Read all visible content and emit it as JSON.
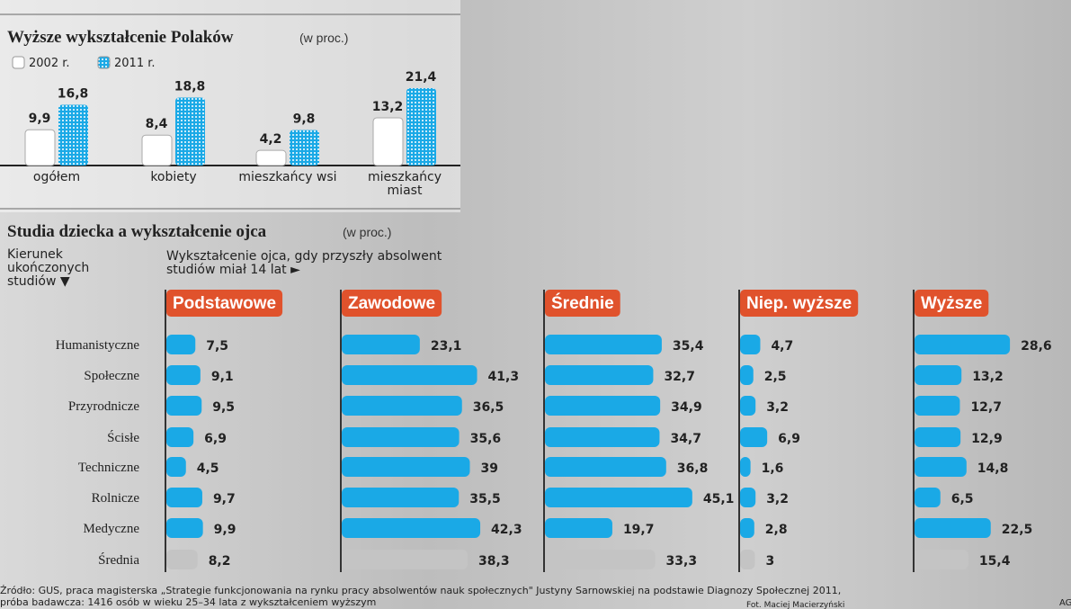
{
  "chart_data": [
    {
      "type": "bar",
      "title": "Wyższe wykształcenie Polaków",
      "subtitle": "(w proc.)",
      "categories": [
        "ogółem",
        "kobiety",
        "mieszkańcy wsi",
        "mieszkańcy miast"
      ],
      "series": [
        {
          "name": "2002 r.",
          "color": "#ffffff",
          "values": [
            9.9,
            8.4,
            4.2,
            13.2
          ],
          "value_labels": [
            "9,9",
            "8,4",
            "4,2",
            "13,2"
          ]
        },
        {
          "name": "2011 r.",
          "color": "#1aa9e6",
          "values": [
            16.8,
            18.8,
            9.8,
            21.4
          ],
          "value_labels": [
            "16,8",
            "18,8",
            "9,8",
            "21,4"
          ]
        }
      ]
    },
    {
      "type": "bar",
      "orientation": "horizontal",
      "title": "Studia  dziecka a wykształcenie ojca",
      "subtitle": "(w proc.)",
      "row_header": "Kierunek ukończonych studiów ▼",
      "column_header": "Wykształcenie ojca, gdy przyszły absolwent studiów miał 14 lat ►",
      "categories": [
        "Humanistyczne",
        "Społeczne",
        "Przyrodnicze",
        "Ścisłe",
        "Techniczne",
        "Rolnicze",
        "Medyczne",
        "Średnia"
      ],
      "header_color": "#e0522c",
      "average_color": "#c4c4c4",
      "series": [
        {
          "name": "Podstawowe",
          "color": "#1aa9e6",
          "values": [
            7.5,
            9.1,
            9.5,
            6.9,
            4.5,
            9.7,
            9.9,
            8.2
          ],
          "value_labels": [
            "7,5",
            "9,1",
            "9,5",
            "6,9",
            "4,5",
            "9,7",
            "9,9",
            "8,2"
          ]
        },
        {
          "name": "Zawodowe",
          "color": "#1aa9e6",
          "values": [
            23.1,
            41.3,
            36.5,
            35.6,
            39,
            35.5,
            42.3,
            38.3
          ],
          "value_labels": [
            "23,1",
            "41,3",
            "36,5",
            "35,6",
            "39",
            "35,5",
            "42,3",
            "38,3"
          ]
        },
        {
          "name": "Średnie",
          "color": "#1aa9e6",
          "values": [
            35.4,
            32.7,
            34.9,
            34.7,
            36.8,
            45.1,
            19.7,
            33.3
          ],
          "value_labels": [
            "35,4",
            "32,7",
            "34,9",
            "34,7",
            "36,8",
            "45,1",
            "19,7",
            "33,3"
          ]
        },
        {
          "name": "Niep. wyższe",
          "color": "#1aa9e6",
          "values": [
            4.7,
            2.5,
            3.2,
            6.9,
            1.6,
            3.2,
            2.8,
            3
          ],
          "value_labels": [
            "4,7",
            "2,5",
            "3,2",
            "6,9",
            "1,6",
            "3,2",
            "2,8",
            "3"
          ]
        },
        {
          "name": "Wyższe",
          "color": "#1aa9e6",
          "values": [
            28.6,
            13.2,
            12.7,
            12.9,
            14.8,
            6.5,
            22.5,
            15.4
          ],
          "value_labels": [
            "28,6",
            "13,2",
            "12,7",
            "12,9",
            "14,8",
            "6,5",
            "22,5",
            "15,4"
          ]
        }
      ]
    }
  ],
  "source": [
    "Źródło: GUS, praca magisterska „Strategie funkcjonowania na rynku pracy absolwentów nauk społecznych\"  Justyny Sarnowskiej na podstawie Diagnozy Społecznej 2011,",
    "próba badawcza: 1416 osób w wieku 25–34 lata z wykształceniem wyższym"
  ],
  "photo_credit": "Fot. Maciej Macierzyński",
  "agency": "AG"
}
